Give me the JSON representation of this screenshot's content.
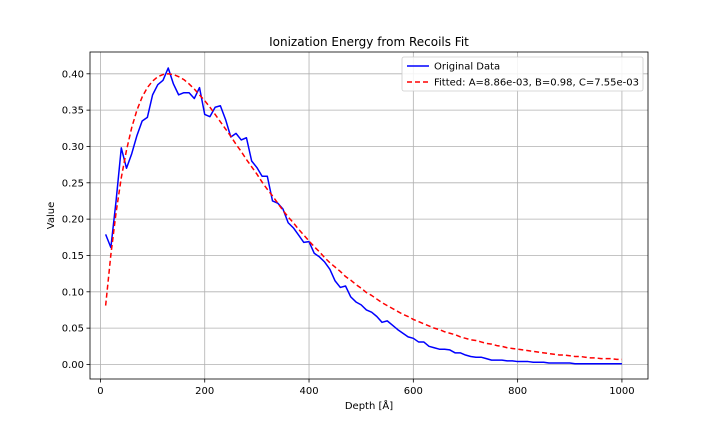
{
  "chart_data": {
    "type": "line",
    "title": "Ionization Energy from Recoils Fit",
    "xlabel": "Depth [Å]",
    "ylabel": "Value",
    "xlim": [
      -20,
      1050
    ],
    "ylim": [
      -0.02,
      0.43
    ],
    "xticks": [
      0,
      200,
      400,
      600,
      800,
      1000
    ],
    "yticks": [
      0.0,
      0.05,
      0.1,
      0.15,
      0.2,
      0.25,
      0.3,
      0.35,
      0.4
    ],
    "grid": true,
    "legend_position": "top-right",
    "series": [
      {
        "name": "Original Data",
        "color": "#0000ff",
        "style": "solid",
        "x": [
          10,
          20,
          30,
          40,
          50,
          60,
          70,
          80,
          90,
          100,
          110,
          120,
          130,
          140,
          150,
          160,
          170,
          180,
          190,
          200,
          210,
          220,
          230,
          240,
          250,
          260,
          270,
          280,
          290,
          300,
          310,
          320,
          330,
          340,
          350,
          360,
          370,
          380,
          390,
          400,
          410,
          420,
          430,
          440,
          450,
          460,
          470,
          480,
          490,
          500,
          510,
          520,
          530,
          540,
          550,
          560,
          570,
          580,
          590,
          600,
          610,
          620,
          630,
          640,
          650,
          660,
          670,
          680,
          690,
          700,
          710,
          720,
          730,
          740,
          750,
          760,
          770,
          780,
          790,
          800,
          810,
          820,
          830,
          840,
          850,
          860,
          870,
          880,
          890,
          900,
          910,
          920,
          930,
          940,
          950,
          960,
          970,
          980,
          990,
          1000
        ],
        "y": [
          0.179,
          0.161,
          0.225,
          0.298,
          0.27,
          0.29,
          0.315,
          0.335,
          0.34,
          0.371,
          0.385,
          0.391,
          0.408,
          0.386,
          0.371,
          0.374,
          0.374,
          0.366,
          0.381,
          0.344,
          0.341,
          0.354,
          0.356,
          0.337,
          0.313,
          0.318,
          0.309,
          0.312,
          0.28,
          0.271,
          0.259,
          0.259,
          0.225,
          0.222,
          0.214,
          0.195,
          0.188,
          0.178,
          0.168,
          0.169,
          0.153,
          0.148,
          0.141,
          0.131,
          0.115,
          0.106,
          0.108,
          0.093,
          0.086,
          0.082,
          0.075,
          0.072,
          0.066,
          0.058,
          0.06,
          0.054,
          0.048,
          0.043,
          0.038,
          0.036,
          0.031,
          0.031,
          0.025,
          0.023,
          0.021,
          0.021,
          0.02,
          0.016,
          0.016,
          0.013,
          0.011,
          0.01,
          0.01,
          0.008,
          0.006,
          0.006,
          0.006,
          0.005,
          0.005,
          0.004,
          0.004,
          0.004,
          0.003,
          0.003,
          0.003,
          0.002,
          0.002,
          0.002,
          0.002,
          0.002,
          0.001,
          0.001,
          0.001,
          0.001,
          0.001,
          0.001,
          0.001,
          0.001,
          0.001,
          0.001
        ]
      },
      {
        "name": "Fitted: A=8.86e-03, B=0.98, C=7.55e-03",
        "color": "#ff0000",
        "style": "dashed",
        "x": [
          10,
          20,
          30,
          40,
          50,
          60,
          70,
          80,
          90,
          100,
          110,
          120,
          130,
          140,
          150,
          160,
          170,
          180,
          190,
          200,
          210,
          220,
          230,
          240,
          250,
          260,
          270,
          280,
          290,
          300,
          310,
          320,
          330,
          340,
          350,
          360,
          370,
          380,
          390,
          400,
          410,
          420,
          430,
          440,
          450,
          460,
          470,
          480,
          490,
          500,
          510,
          520,
          530,
          540,
          550,
          560,
          570,
          580,
          590,
          600,
          610,
          620,
          630,
          640,
          650,
          660,
          670,
          680,
          690,
          700,
          710,
          720,
          730,
          740,
          750,
          760,
          770,
          780,
          790,
          800,
          810,
          820,
          830,
          840,
          850,
          860,
          870,
          880,
          890,
          900,
          910,
          920,
          930,
          940,
          950,
          960,
          970,
          980,
          990,
          1000
        ],
        "y": [
          0.081,
          0.151,
          0.209,
          0.257,
          0.295,
          0.326,
          0.35,
          0.368,
          0.381,
          0.39,
          0.396,
          0.399,
          0.4,
          0.399,
          0.396,
          0.392,
          0.386,
          0.379,
          0.371,
          0.363,
          0.354,
          0.344,
          0.334,
          0.324,
          0.314,
          0.303,
          0.293,
          0.282,
          0.272,
          0.262,
          0.251,
          0.241,
          0.232,
          0.222,
          0.212,
          0.203,
          0.195,
          0.186,
          0.178,
          0.17,
          0.162,
          0.155,
          0.147,
          0.14,
          0.134,
          0.128,
          0.121,
          0.116,
          0.11,
          0.105,
          0.099,
          0.095,
          0.09,
          0.085,
          0.081,
          0.077,
          0.073,
          0.069,
          0.066,
          0.062,
          0.059,
          0.056,
          0.053,
          0.05,
          0.048,
          0.045,
          0.043,
          0.041,
          0.038,
          0.036,
          0.034,
          0.033,
          0.031,
          0.029,
          0.028,
          0.026,
          0.025,
          0.023,
          0.022,
          0.021,
          0.02,
          0.019,
          0.018,
          0.017,
          0.016,
          0.015,
          0.014,
          0.013,
          0.013,
          0.012,
          0.011,
          0.011,
          0.01,
          0.009,
          0.009,
          0.008,
          0.008,
          0.008,
          0.007,
          0.007
        ]
      }
    ]
  }
}
